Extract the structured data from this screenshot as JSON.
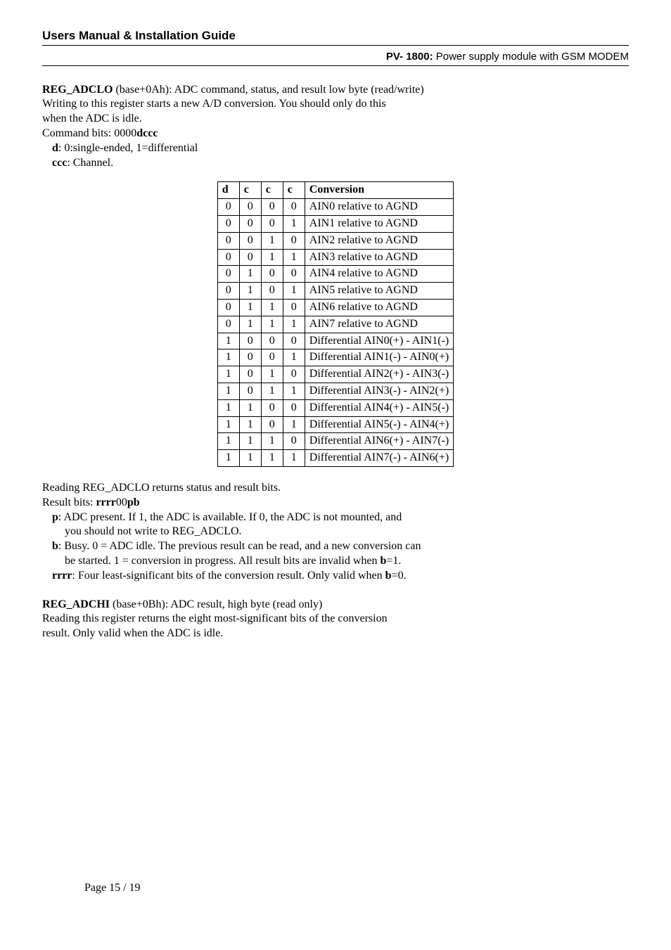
{
  "header": {
    "left": "Users Manual & Installation Guide",
    "right_bold": "PV- 1800:",
    "right_rest": " Power supply module with GSM MODEM"
  },
  "reg_adclo": {
    "title_bold": "REG_ADCLO",
    "title_rest": " (base+0Ah): ADC command, status, and result low byte (read/write)",
    "line2": "Writing to this register starts a new A/D conversion.  You should only do this",
    "line3": "when the ADC is idle.",
    "cmd_prefix": "Command bits: 0000",
    "cmd_bold": "dccc",
    "d_bold": "d",
    "d_rest": ": 0:single-ended, 1=differential",
    "ccc_bold": "ccc",
    "ccc_rest": ": Channel."
  },
  "table": {
    "headers": [
      "d",
      "c",
      "c",
      "c",
      "Conversion"
    ],
    "rows": [
      [
        "0",
        "0",
        "0",
        "0",
        "AIN0 relative to AGND"
      ],
      [
        "0",
        "0",
        "0",
        "1",
        "AIN1 relative to AGND"
      ],
      [
        "0",
        "0",
        "1",
        "0",
        "AIN2 relative to AGND"
      ],
      [
        "0",
        "0",
        "1",
        "1",
        "AIN3 relative to AGND"
      ],
      [
        "0",
        "1",
        "0",
        "0",
        "AIN4 relative to AGND"
      ],
      [
        "0",
        "1",
        "0",
        "1",
        "AIN5 relative to AGND"
      ],
      [
        "0",
        "1",
        "1",
        "0",
        "AIN6 relative to AGND"
      ],
      [
        "0",
        "1",
        "1",
        "1",
        "AIN7 relative to AGND"
      ],
      [
        "1",
        "0",
        "0",
        "0",
        "Differential AIN0(+) - AIN1(-)"
      ],
      [
        "1",
        "0",
        "0",
        "1",
        "Differential AIN1(-) - AIN0(+)"
      ],
      [
        "1",
        "0",
        "1",
        "0",
        "Differential AIN2(+) - AIN3(-)"
      ],
      [
        "1",
        "0",
        "1",
        "1",
        "Differential AIN3(-) - AIN2(+)"
      ],
      [
        "1",
        "1",
        "0",
        "0",
        "Differential AIN4(+) - AIN5(-)"
      ],
      [
        "1",
        "1",
        "0",
        "1",
        "Differential AIN5(-) - AIN4(+)"
      ],
      [
        "1",
        "1",
        "1",
        "0",
        "Differential AIN6(+) - AIN7(-)"
      ],
      [
        "1",
        "1",
        "1",
        "1",
        "Differential AIN7(-) - AIN6(+)"
      ]
    ]
  },
  "result_section": {
    "line1": "Reading REG_ADCLO returns status and result bits.",
    "line2_prefix": "Result bits: ",
    "line2_bold1": "rrrr",
    "line2_mid": "00",
    "line2_bold2": "pb",
    "p_bold": "p",
    "p_rest": ": ADC present.  If 1, the ADC is available.  If 0, the ADC is not mounted, and",
    "p_line2": "you should not write to REG_ADCLO.",
    "b_bold": "b",
    "b_rest": ": Busy. 0 = ADC idle. The previous result can be read, and a new conversion can",
    "b_line2_pre": "be started.  1 = conversion in progress.  All result bits are invalid when ",
    "b_line2_bold": "b",
    "b_line2_post": "=1.",
    "rrrr_bold": "rrrr",
    "rrrr_rest_pre": ": Four least-significant bits of the conversion result.  Only valid when ",
    "rrrr_rest_bold": "b",
    "rrrr_rest_post": "=0."
  },
  "reg_adchi": {
    "title_bold": "REG_ADCHI",
    "title_rest": " (base+0Bh): ADC result, high byte (read only)",
    "line2": "Reading this register returns the eight most-significant bits of the conversion",
    "line3": "result.  Only valid when the ADC is idle."
  },
  "footer": "Page 15 / 19"
}
